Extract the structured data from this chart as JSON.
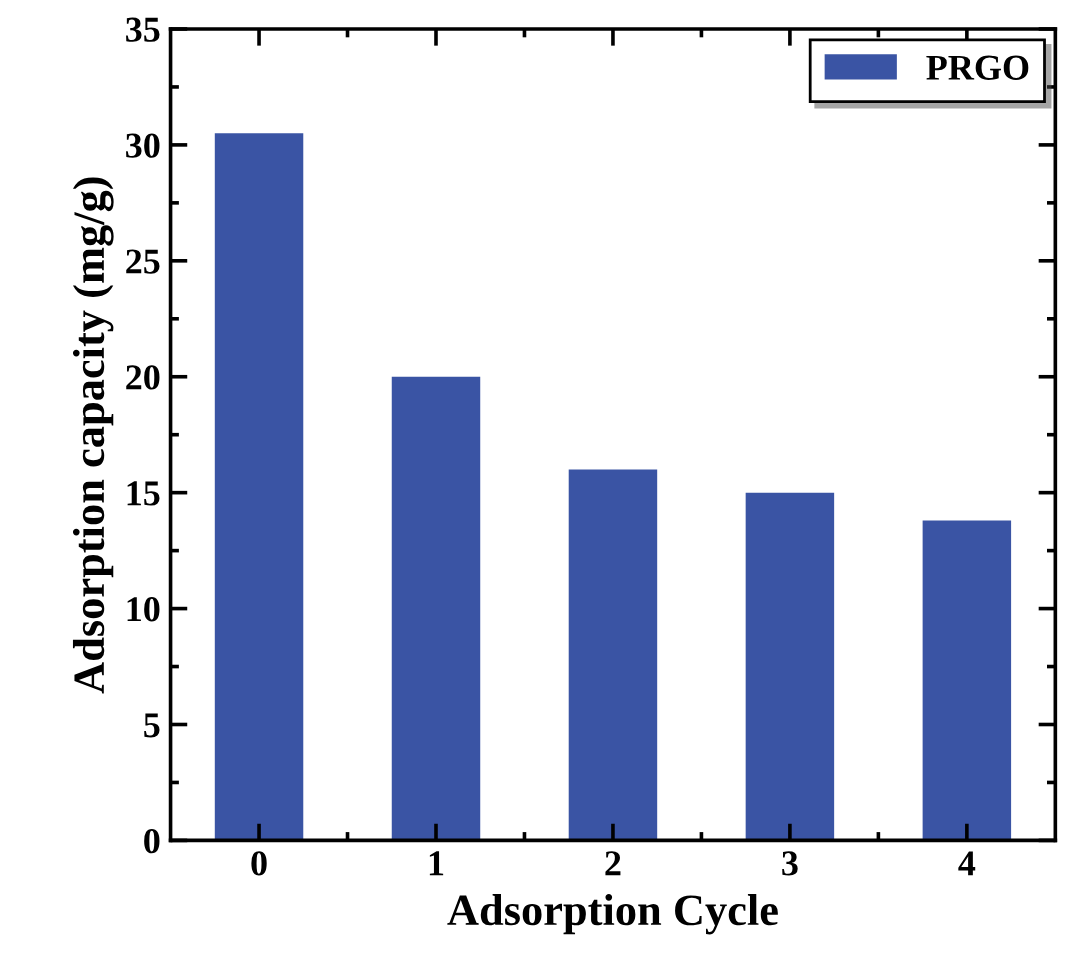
{
  "chart_data": {
    "type": "bar",
    "xlabel": "Adsorption Cycle",
    "ylabel": "Adsorption capacity (mg/g)",
    "categories": [
      "0",
      "1",
      "2",
      "3",
      "4"
    ],
    "series": [
      {
        "name": "PRGO",
        "color": "#3a54a4",
        "values": [
          30.5,
          20,
          16,
          15,
          13.8
        ]
      }
    ],
    "ylim": [
      0,
      35
    ],
    "yticks": [
      0,
      5,
      10,
      15,
      20,
      25,
      30,
      35
    ],
    "grid": false,
    "legend": "top right"
  }
}
